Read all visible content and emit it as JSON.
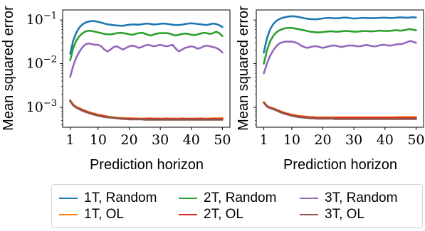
{
  "chart_data": [
    {
      "type": "line",
      "ylabel": "Mean squared error",
      "xlabel": "Prediction horizon",
      "yscale": "log",
      "xlim": [
        1,
        50
      ],
      "ylim": [
        0.00035,
        0.17
      ],
      "xticks": [
        1,
        10,
        20,
        30,
        40,
        50
      ],
      "yticks": [
        {
          "value": 0.001,
          "label": "10^-3"
        },
        {
          "value": 0.01,
          "label": "10^-2"
        },
        {
          "value": 0.1,
          "label": "10^-1"
        }
      ],
      "grid": false,
      "x": [
        1,
        2,
        3,
        4,
        5,
        6,
        7,
        8,
        9,
        10,
        11,
        12,
        13,
        14,
        15,
        16,
        17,
        18,
        19,
        20,
        21,
        22,
        23,
        24,
        25,
        26,
        27,
        28,
        29,
        30,
        31,
        32,
        33,
        34,
        35,
        36,
        37,
        38,
        39,
        40,
        41,
        42,
        43,
        44,
        45,
        46,
        47,
        48,
        49,
        50
      ],
      "series": [
        {
          "name": "1T, Random",
          "color": "#1f77b4",
          "values": [
            0.017,
            0.034,
            0.052,
            0.068,
            0.08,
            0.088,
            0.092,
            0.095,
            0.094,
            0.091,
            0.087,
            0.083,
            0.08,
            0.078,
            0.076,
            0.075,
            0.074,
            0.074,
            0.076,
            0.078,
            0.079,
            0.079,
            0.078,
            0.08,
            0.082,
            0.083,
            0.081,
            0.079,
            0.08,
            0.082,
            0.083,
            0.082,
            0.08,
            0.078,
            0.077,
            0.077,
            0.078,
            0.081,
            0.083,
            0.084,
            0.083,
            0.081,
            0.08,
            0.078,
            0.077,
            0.08,
            0.083,
            0.081,
            0.076,
            0.069
          ]
        },
        {
          "name": "2T, Random",
          "color": "#2ca02c",
          "values": [
            0.012,
            0.023,
            0.034,
            0.043,
            0.05,
            0.055,
            0.057,
            0.056,
            0.054,
            0.052,
            0.05,
            0.048,
            0.047,
            0.047,
            0.048,
            0.05,
            0.051,
            0.05,
            0.049,
            0.047,
            0.046,
            0.048,
            0.05,
            0.051,
            0.049,
            0.046,
            0.044,
            0.047,
            0.049,
            0.05,
            0.05,
            0.05,
            0.049,
            0.046,
            0.044,
            0.046,
            0.048,
            0.049,
            0.048,
            0.046,
            0.045,
            0.047,
            0.049,
            0.051,
            0.05,
            0.048,
            0.05,
            0.054,
            0.05,
            0.043
          ]
        },
        {
          "name": "3T, Random",
          "color": "#9467bd",
          "values": [
            0.005,
            0.009,
            0.014,
            0.019,
            0.024,
            0.028,
            0.029,
            0.028,
            0.027,
            0.027,
            0.025,
            0.021,
            0.019,
            0.021,
            0.024,
            0.025,
            0.023,
            0.021,
            0.023,
            0.025,
            0.026,
            0.025,
            0.023,
            0.024,
            0.026,
            0.027,
            0.026,
            0.025,
            0.026,
            0.027,
            0.026,
            0.025,
            0.026,
            0.027,
            0.022,
            0.019,
            0.021,
            0.023,
            0.024,
            0.025,
            0.024,
            0.022,
            0.023,
            0.025,
            0.026,
            0.025,
            0.024,
            0.023,
            0.021,
            0.018
          ]
        },
        {
          "name": "1T, OL",
          "color": "#ff7f0e",
          "values": [
            0.00145,
            0.00115,
            0.00102,
            0.00095,
            0.00088,
            0.00082,
            0.00078,
            0.00074,
            0.00071,
            0.00068,
            0.00066,
            0.00064,
            0.00062,
            0.0006,
            0.00059,
            0.00058,
            0.00057,
            0.00057,
            0.00056,
            0.00056,
            0.00056,
            0.00056,
            0.00055,
            0.00055,
            0.00055,
            0.00056,
            0.00056,
            0.00055,
            0.00055,
            0.00055,
            0.00055,
            0.00056,
            0.00055,
            0.00055,
            0.00055,
            0.00055,
            0.00056,
            0.00055,
            0.00055,
            0.00055,
            0.00055,
            0.00055,
            0.00056,
            0.00055,
            0.00055,
            0.00055,
            0.00056,
            0.00056,
            0.00056,
            0.00057
          ]
        },
        {
          "name": "2T, OL",
          "color": "#d62728",
          "values": [
            0.00142,
            0.00113,
            0.001,
            0.00093,
            0.00086,
            0.00081,
            0.00076,
            0.00072,
            0.00069,
            0.00066,
            0.00064,
            0.00062,
            0.0006,
            0.00059,
            0.00058,
            0.00057,
            0.00056,
            0.00055,
            0.00055,
            0.00055,
            0.00054,
            0.00054,
            0.00054,
            0.00054,
            0.00054,
            0.00054,
            0.00054,
            0.00054,
            0.00054,
            0.00054,
            0.00054,
            0.00054,
            0.00054,
            0.00054,
            0.00054,
            0.00054,
            0.00054,
            0.00054,
            0.00054,
            0.00054,
            0.00054,
            0.00054,
            0.00054,
            0.00054,
            0.00054,
            0.00054,
            0.00054,
            0.00054,
            0.00054,
            0.00054
          ]
        },
        {
          "name": "3T, OL",
          "color": "#8c564b",
          "values": [
            0.00138,
            0.0011,
            0.00098,
            0.0009,
            0.00083,
            0.00078,
            0.00074,
            0.0007,
            0.00067,
            0.00064,
            0.00062,
            0.0006,
            0.00059,
            0.00058,
            0.00057,
            0.00056,
            0.00055,
            0.00054,
            0.00054,
            0.00053,
            0.00053,
            0.00053,
            0.00053,
            0.00053,
            0.00052,
            0.00052,
            0.00052,
            0.00052,
            0.00052,
            0.00052,
            0.00052,
            0.00052,
            0.00052,
            0.00052,
            0.00052,
            0.00052,
            0.00052,
            0.00052,
            0.00052,
            0.00052,
            0.00052,
            0.00052,
            0.00052,
            0.00052,
            0.00052,
            0.00052,
            0.00052,
            0.00052,
            0.00052,
            0.00052
          ]
        }
      ]
    },
    {
      "type": "line",
      "ylabel": "Mean squared error",
      "xlabel": "Prediction horizon",
      "yscale": "log",
      "xlim": [
        1,
        50
      ],
      "ylim": [
        0.00035,
        0.17
      ],
      "xticks": [
        1,
        10,
        20,
        30,
        40,
        50
      ],
      "yticks": [],
      "grid": false,
      "x": [
        1,
        2,
        3,
        4,
        5,
        6,
        7,
        8,
        9,
        10,
        11,
        12,
        13,
        14,
        15,
        16,
        17,
        18,
        19,
        20,
        21,
        22,
        23,
        24,
        25,
        26,
        27,
        28,
        29,
        30,
        31,
        32,
        33,
        34,
        35,
        36,
        37,
        38,
        39,
        40,
        41,
        42,
        43,
        44,
        45,
        46,
        47,
        48,
        49,
        50
      ],
      "series": [
        {
          "name": "1T, Random",
          "color": "#1f77b4",
          "values": [
            0.018,
            0.038,
            0.06,
            0.08,
            0.095,
            0.105,
            0.112,
            0.117,
            0.12,
            0.122,
            0.121,
            0.118,
            0.114,
            0.11,
            0.107,
            0.105,
            0.104,
            0.104,
            0.106,
            0.109,
            0.111,
            0.112,
            0.111,
            0.109,
            0.11,
            0.112,
            0.114,
            0.113,
            0.11,
            0.108,
            0.109,
            0.111,
            0.112,
            0.111,
            0.11,
            0.11,
            0.111,
            0.112,
            0.113,
            0.113,
            0.112,
            0.111,
            0.112,
            0.114,
            0.115,
            0.114,
            0.113,
            0.114,
            0.116,
            0.114
          ]
        },
        {
          "name": "2T, Random",
          "color": "#2ca02c",
          "values": [
            0.01,
            0.02,
            0.032,
            0.043,
            0.052,
            0.058,
            0.062,
            0.065,
            0.066,
            0.066,
            0.064,
            0.062,
            0.06,
            0.058,
            0.056,
            0.054,
            0.053,
            0.052,
            0.052,
            0.053,
            0.054,
            0.055,
            0.055,
            0.054,
            0.054,
            0.055,
            0.056,
            0.056,
            0.055,
            0.054,
            0.054,
            0.055,
            0.056,
            0.056,
            0.055,
            0.055,
            0.056,
            0.057,
            0.057,
            0.056,
            0.056,
            0.057,
            0.058,
            0.058,
            0.057,
            0.058,
            0.06,
            0.062,
            0.06,
            0.058
          ]
        },
        {
          "name": "3T, Random",
          "color": "#9467bd",
          "values": [
            0.006,
            0.01,
            0.015,
            0.02,
            0.025,
            0.029,
            0.031,
            0.032,
            0.032,
            0.032,
            0.031,
            0.029,
            0.026,
            0.024,
            0.023,
            0.024,
            0.025,
            0.025,
            0.024,
            0.023,
            0.024,
            0.025,
            0.026,
            0.026,
            0.025,
            0.024,
            0.025,
            0.026,
            0.026,
            0.026,
            0.025,
            0.025,
            0.026,
            0.027,
            0.026,
            0.025,
            0.025,
            0.026,
            0.027,
            0.027,
            0.026,
            0.026,
            0.027,
            0.028,
            0.028,
            0.029,
            0.031,
            0.033,
            0.032,
            0.03
          ]
        },
        {
          "name": "1T, OL",
          "color": "#ff7f0e",
          "values": [
            0.00132,
            0.00108,
            0.001,
            0.00095,
            0.00089,
            0.00083,
            0.00078,
            0.00074,
            0.00071,
            0.00068,
            0.00066,
            0.00064,
            0.00063,
            0.00062,
            0.00061,
            0.0006,
            0.0006,
            0.00059,
            0.00059,
            0.00059,
            0.00059,
            0.00059,
            0.00059,
            0.00059,
            0.00059,
            0.00059,
            0.00059,
            0.00059,
            0.00059,
            0.00059,
            0.00059,
            0.00059,
            0.00059,
            0.00059,
            0.00059,
            0.00059,
            0.00059,
            0.00059,
            0.00059,
            0.00059,
            0.00059,
            0.00059,
            0.00059,
            0.0006,
            0.0006,
            0.0006,
            0.0006,
            0.0006,
            0.0006,
            0.0006
          ]
        },
        {
          "name": "2T, OL",
          "color": "#d62728",
          "values": [
            0.0013,
            0.00106,
            0.00098,
            0.00093,
            0.00087,
            0.00081,
            0.00076,
            0.00072,
            0.00069,
            0.00066,
            0.00064,
            0.00062,
            0.00061,
            0.0006,
            0.00059,
            0.00058,
            0.00058,
            0.00057,
            0.00057,
            0.00057,
            0.00057,
            0.00057,
            0.00057,
            0.00057,
            0.00057,
            0.00057,
            0.00057,
            0.00057,
            0.00057,
            0.00057,
            0.00057,
            0.00057,
            0.00057,
            0.00057,
            0.00057,
            0.00057,
            0.00057,
            0.00057,
            0.00057,
            0.00057,
            0.00057,
            0.00057,
            0.00057,
            0.00057,
            0.00057,
            0.00057,
            0.00057,
            0.00057,
            0.00057,
            0.00057
          ]
        },
        {
          "name": "3T, OL",
          "color": "#8c564b",
          "values": [
            0.00128,
            0.00104,
            0.00096,
            0.00091,
            0.00085,
            0.00079,
            0.00074,
            0.0007,
            0.00067,
            0.00064,
            0.00062,
            0.0006,
            0.00059,
            0.00058,
            0.00057,
            0.00056,
            0.00056,
            0.00055,
            0.00055,
            0.00055,
            0.00055,
            0.00055,
            0.00055,
            0.00054,
            0.00054,
            0.00054,
            0.00054,
            0.00054,
            0.00054,
            0.00054,
            0.00054,
            0.00054,
            0.00054,
            0.00054,
            0.00054,
            0.00054,
            0.00054,
            0.00054,
            0.00054,
            0.00054,
            0.00054,
            0.00054,
            0.00054,
            0.00054,
            0.00054,
            0.00054,
            0.00054,
            0.00054,
            0.00054,
            0.00054
          ]
        }
      ]
    }
  ],
  "legend": {
    "placement": "bottom",
    "items": [
      {
        "label": "1T, Random",
        "color": "#1f77b4"
      },
      {
        "label": "2T, Random",
        "color": "#2ca02c"
      },
      {
        "label": "3T, Random",
        "color": "#9467bd"
      },
      {
        "label": "1T, OL",
        "color": "#ff7f0e"
      },
      {
        "label": "2T, OL",
        "color": "#d62728"
      },
      {
        "label": "3T, OL",
        "color": "#8c564b"
      }
    ]
  }
}
